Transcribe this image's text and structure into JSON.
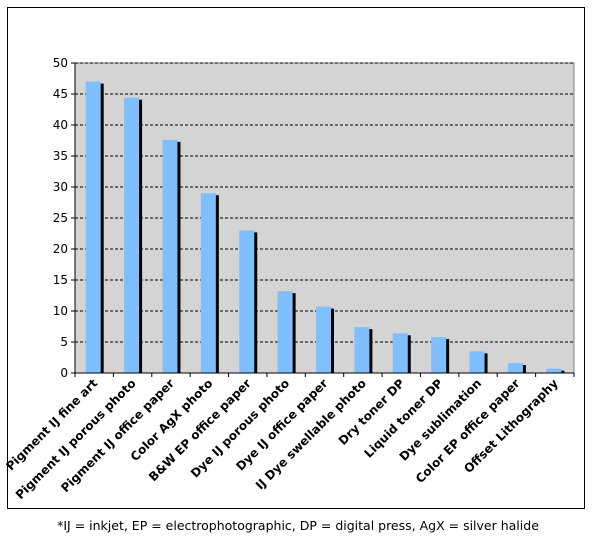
{
  "chart_data": {
    "type": "bar",
    "categories": [
      "Pigment IJ fine art",
      "Pigment IJ porous photo",
      "Pigment IJ office paper",
      "Color AgX photo",
      "B&W EP office paper",
      "Dye IJ porous photo",
      "Dye IJ office paper",
      "IJ Dye swellable photo",
      "Dry toner DP",
      "Liquid toner DP",
      "Dye sublimation",
      "Color EP office paper",
      "Offset Lithography"
    ],
    "values": [
      47,
      44.4,
      37.6,
      29,
      23,
      13.2,
      10.7,
      7.4,
      6.4,
      5.8,
      3.5,
      1.6,
      0.7
    ],
    "title": "",
    "xlabel": "",
    "ylabel": "",
    "ylim": [
      0,
      50
    ],
    "yticks": [
      0,
      5,
      10,
      15,
      20,
      25,
      30,
      35,
      40,
      45,
      50
    ],
    "grid": "horizontal dashed",
    "legend": "none",
    "colors": {
      "bar": "#7fbfff",
      "bar_shadow": "#000000",
      "plot_background": "#d4d4d4",
      "gridline": "#000000"
    }
  },
  "footnote": "*IJ = inkjet, EP = electrophotographic, DP = digital press, AgX = silver halide"
}
